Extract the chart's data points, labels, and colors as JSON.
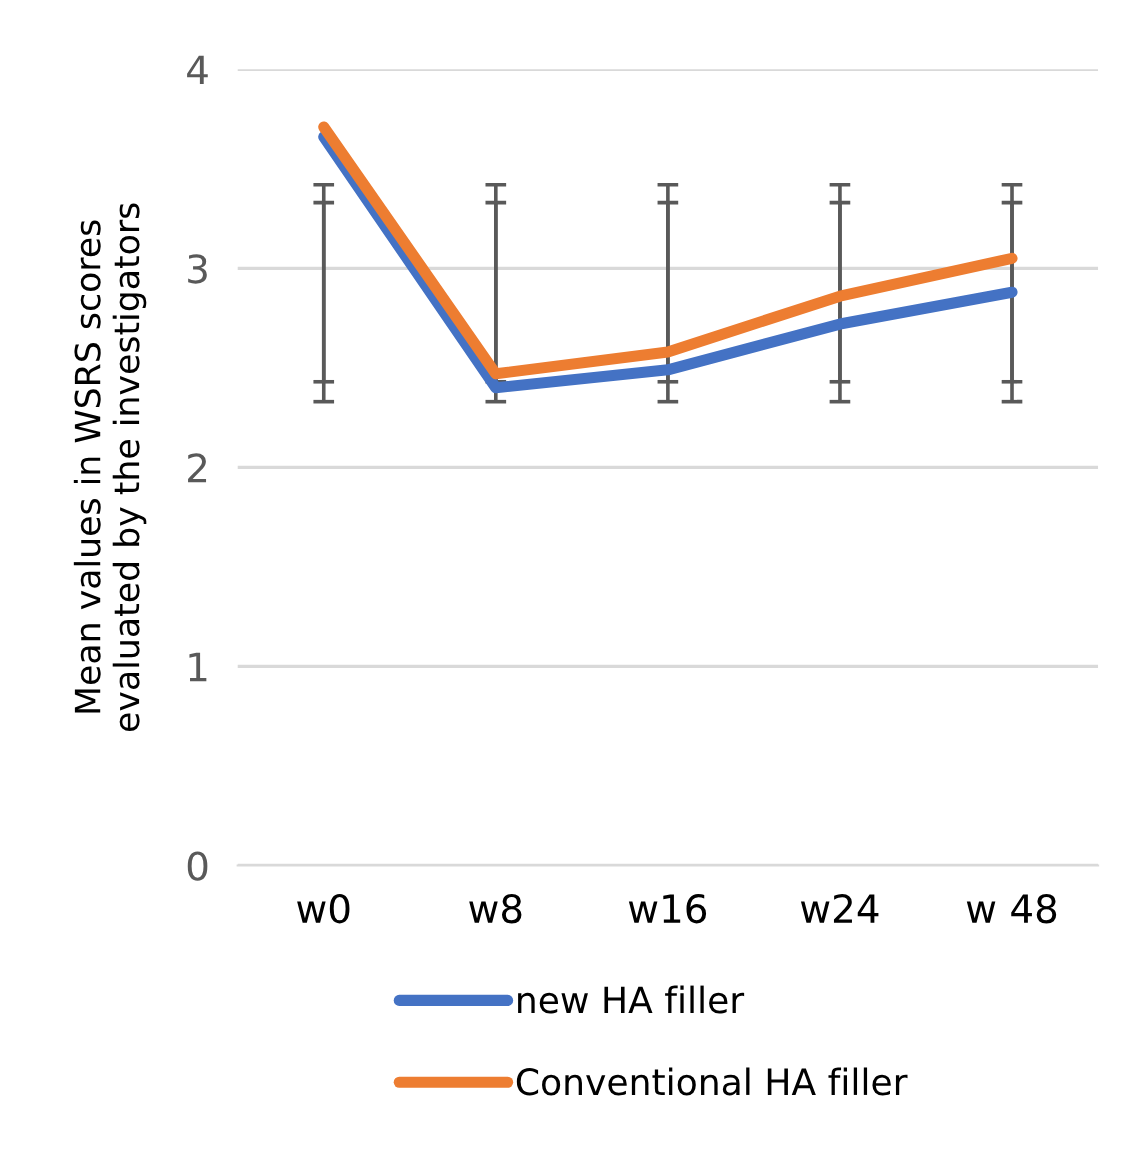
{
  "chart_data": {
    "type": "line",
    "ylabel": "Mean values in WSRS scores\nevaluated by the investigators",
    "categories": [
      "w0",
      "w8",
      "w16",
      "w24",
      "w 48"
    ],
    "series": [
      {
        "name": "new HA filler",
        "color": "#4472c4",
        "values": [
          3.66,
          2.4,
          2.49,
          2.72,
          2.88
        ],
        "errors": [
          [
            2.33,
            3.42
          ],
          [
            2.33,
            3.42
          ],
          [
            2.33,
            3.42
          ],
          [
            2.33,
            3.42
          ],
          [
            2.33,
            3.42
          ]
        ]
      },
      {
        "name": "Conventional HA filler",
        "color": "#ed7d31",
        "values": [
          3.71,
          2.47,
          2.58,
          2.86,
          3.05
        ],
        "errors": [
          [
            2.43,
            3.33
          ],
          [
            2.43,
            3.33
          ],
          [
            2.43,
            3.33
          ],
          [
            2.43,
            3.33
          ],
          [
            2.43,
            3.33
          ]
        ]
      }
    ],
    "ylim": [
      0,
      4
    ],
    "yticks": [
      0,
      1,
      2,
      3,
      4
    ],
    "grid": "y",
    "legend": "bottom",
    "marker": "none",
    "line_style": "solid"
  }
}
